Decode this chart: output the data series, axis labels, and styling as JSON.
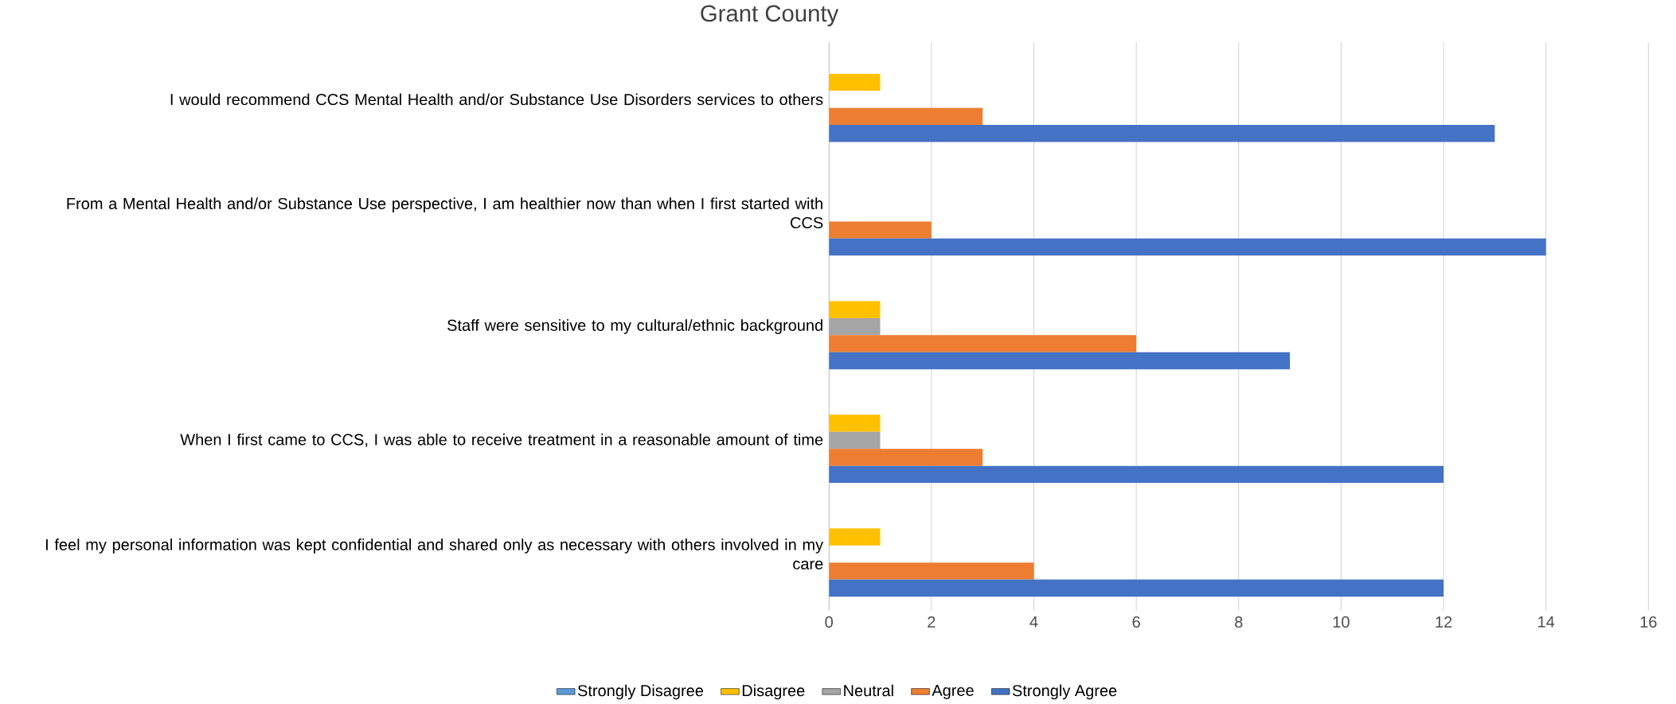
{
  "chart_data": {
    "type": "bar",
    "orientation": "horizontal",
    "title": "Grant County",
    "categories": [
      "I would recommend CCS Mental Health and/or Substance Use Disorders services to others",
      "From a Mental Health and/or Substance Use perspective, I am healthier now than when I first started with CCS",
      "Staff were sensitive to my cultural/ethnic background",
      "When I first came to CCS, I was able to receive treatment in a reasonable amount of time",
      "I feel my personal information was kept confidential and shared only as necessary with others involved in my care"
    ],
    "series": [
      {
        "name": "Strongly Disagree",
        "color": "#5b9bd5",
        "values": [
          0,
          0,
          0,
          0,
          0
        ]
      },
      {
        "name": "Disagree",
        "color": "#ffc000",
        "values": [
          1,
          0,
          1,
          1,
          1
        ]
      },
      {
        "name": "Neutral",
        "color": "#a5a5a5",
        "values": [
          0,
          0,
          1,
          1,
          0
        ]
      },
      {
        "name": "Agree",
        "color": "#ed7d31",
        "values": [
          3,
          2,
          6,
          3,
          4
        ]
      },
      {
        "name": "Strongly Agree",
        "color": "#4472c4",
        "values": [
          13,
          14,
          9,
          12,
          12
        ]
      }
    ],
    "xlim": [
      0,
      16
    ],
    "xticks": [
      0,
      2,
      4,
      6,
      8,
      10,
      12,
      14,
      16
    ],
    "grid": "x",
    "legend": "bottom"
  }
}
